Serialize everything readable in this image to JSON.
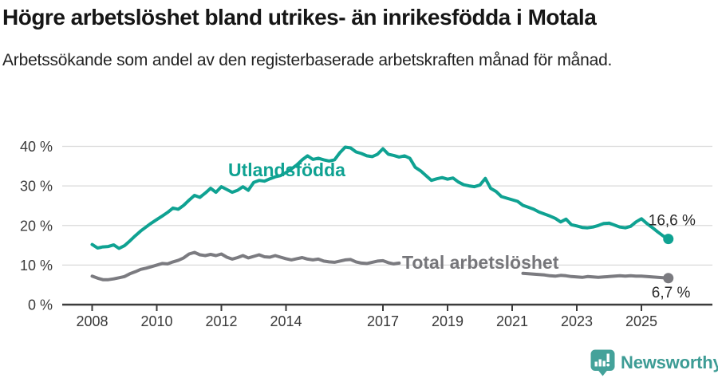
{
  "header": {
    "title": "Högre arbetslöshet bland utrikes- än inrikesfödda i Motala",
    "subtitle": "Arbetssökande som andel av den registerbaserade arbetskraften månad för månad."
  },
  "chart_data": {
    "type": "line",
    "title": "Högre arbetslöshet bland utrikes- än inrikesfödda i Motala",
    "subtitle": "Arbetssökande som andel av den registerbaserade arbetskraften månad för månad.",
    "unit": "%",
    "x_start_year": 2008,
    "x_points_per_year": 6,
    "xlim": [
      2007.1,
      2027.2
    ],
    "ylim": [
      0,
      42
    ],
    "grid": "horizontal",
    "legend_position": "inline-labels",
    "y_axis": {
      "ticks": [
        {
          "value": 40,
          "label": "40 %"
        },
        {
          "value": 30,
          "label": "30 %"
        },
        {
          "value": 20,
          "label": "20 %"
        },
        {
          "value": 10,
          "label": "10 %"
        },
        {
          "value": 0,
          "label": "0 %"
        }
      ]
    },
    "x_axis": {
      "ticks": [
        {
          "year": 2008,
          "label": "2008"
        },
        {
          "year": 2010,
          "label": "2010"
        },
        {
          "year": 2012,
          "label": "2012"
        },
        {
          "year": 2014,
          "label": "2014"
        },
        {
          "year": 2017,
          "label": "2017"
        },
        {
          "year": 2019,
          "label": "2019"
        },
        {
          "year": 2021,
          "label": "2021"
        },
        {
          "year": 2023,
          "label": "2023"
        },
        {
          "year": 2025,
          "label": "2025"
        }
      ]
    },
    "series": [
      {
        "name": "Utlandsfödda",
        "slug": "utlandsfodda",
        "color": "#0FA292",
        "end_label": "16,6 %",
        "end_value": 16.6,
        "values": [
          15.2,
          14.3,
          14.6,
          14.7,
          15.1,
          14.2,
          14.9,
          16.1,
          17.4,
          18.6,
          19.6,
          20.6,
          21.5,
          22.4,
          23.3,
          24.4,
          24.1,
          25.1,
          26.4,
          27.6,
          27.1,
          28.2,
          29.4,
          28.4,
          29.8,
          29.1,
          28.4,
          28.9,
          29.8,
          28.9,
          30.9,
          31.4,
          31.2,
          31.8,
          32.3,
          32.6,
          33.4,
          34.3,
          35.3,
          36.6,
          37.6,
          36.7,
          37.0,
          36.6,
          36.3,
          36.6,
          38.4,
          39.8,
          39.6,
          38.6,
          38.2,
          37.6,
          37.4,
          38.0,
          39.4,
          38.0,
          37.7,
          37.3,
          37.6,
          37.0,
          34.7,
          33.8,
          32.6,
          31.4,
          31.8,
          32.1,
          31.7,
          32.0,
          31.0,
          30.3,
          30.0,
          29.8,
          30.2,
          31.9,
          29.4,
          28.6,
          27.3,
          26.9,
          26.5,
          26.1,
          25.1,
          24.6,
          24.1,
          23.4,
          22.9,
          22.4,
          21.8,
          20.9,
          21.6,
          20.2,
          19.9,
          19.5,
          19.4,
          19.6,
          20.0,
          20.5,
          20.6,
          20.1,
          19.6,
          19.4,
          19.8,
          20.9,
          21.7,
          20.5,
          19.5,
          18.4,
          17.4,
          16.6
        ]
      },
      {
        "name": "Total arbetslöshet",
        "slug": "total-arbetsloshet",
        "color": "#7B7B80",
        "label_color": "#76767A",
        "end_label": "6,7 %",
        "end_value": 6.7,
        "values": [
          7.2,
          6.7,
          6.3,
          6.3,
          6.5,
          6.8,
          7.1,
          7.8,
          8.3,
          8.9,
          9.2,
          9.6,
          10.0,
          10.4,
          10.3,
          10.8,
          11.2,
          11.8,
          12.8,
          13.2,
          12.6,
          12.4,
          12.7,
          12.4,
          12.8,
          12.0,
          11.5,
          11.9,
          12.4,
          11.8,
          12.2,
          12.6,
          12.1,
          12.0,
          12.4,
          12.0,
          11.6,
          11.3,
          11.6,
          11.9,
          11.5,
          11.3,
          11.5,
          11.0,
          10.8,
          10.7,
          11.0,
          11.3,
          11.4,
          10.8,
          10.5,
          10.4,
          10.7,
          11.0,
          11.1,
          10.6,
          10.3,
          10.5,
          null,
          null,
          null,
          null,
          null,
          null,
          null,
          null,
          null,
          null,
          null,
          null,
          null,
          null,
          null,
          null,
          null,
          null,
          null,
          null,
          null,
          null,
          7.9,
          7.8,
          7.7,
          7.6,
          7.5,
          7.3,
          7.2,
          7.4,
          7.3,
          7.1,
          7.0,
          6.9,
          7.1,
          7.0,
          6.9,
          7.0,
          7.1,
          7.2,
          7.3,
          7.2,
          7.3,
          7.2,
          7.2,
          7.1,
          7.0,
          6.9,
          6.8,
          6.7
        ]
      }
    ]
  },
  "footer": {
    "brand": "Newsworthy"
  }
}
